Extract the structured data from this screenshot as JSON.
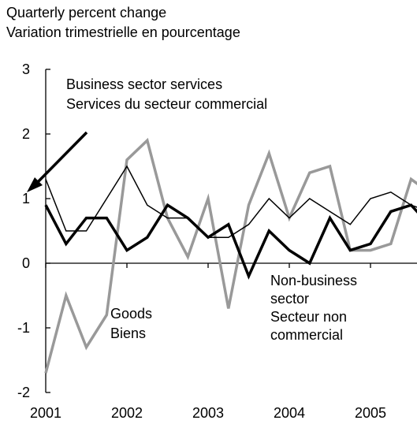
{
  "chart_data": {
    "type": "line",
    "title": "",
    "ylabel_lines": [
      "Quarterly percent change",
      "Variation trimestrielle en pourcentage"
    ],
    "xlabel": "",
    "ylim": [
      -2,
      3
    ],
    "yticks": [
      "3",
      "2",
      "1",
      "0",
      "-1",
      "-2"
    ],
    "ytick_values": [
      3,
      2,
      1,
      0,
      -1,
      -2
    ],
    "xlim": [
      2001,
      2005.72
    ],
    "xticks": [
      "2001",
      "2002",
      "2003",
      "2004",
      "2005"
    ],
    "xtick_values": [
      2001,
      2002,
      2003,
      2004,
      2005
    ],
    "grid": false,
    "series": [
      {
        "key": "goods",
        "color": "#999999",
        "width": 3.5,
        "x": [
          2001.0,
          2001.25,
          2001.5,
          2001.75,
          2002.0,
          2002.25,
          2002.5,
          2002.75,
          2003.0,
          2003.25,
          2003.5,
          2003.75,
          2004.0,
          2004.25,
          2004.5,
          2004.75,
          2005.0,
          2005.25,
          2005.5,
          2005.72
        ],
        "values": [
          -1.7,
          -0.5,
          -1.3,
          -0.8,
          1.6,
          1.9,
          0.7,
          0.1,
          1.0,
          -0.7,
          0.9,
          1.7,
          0.7,
          1.4,
          1.5,
          0.2,
          0.2,
          0.3,
          1.3,
          1.1
        ]
      },
      {
        "key": "business",
        "color": "#000000",
        "width": 1.5,
        "x": [
          2001.0,
          2001.25,
          2001.5,
          2001.75,
          2002.0,
          2002.25,
          2002.5,
          2002.75,
          2003.0,
          2003.25,
          2003.5,
          2003.75,
          2004.0,
          2004.25,
          2004.5,
          2004.75,
          2005.0,
          2005.25,
          2005.5,
          2005.72
        ],
        "values": [
          1.3,
          0.5,
          0.5,
          1.0,
          1.5,
          0.9,
          0.7,
          0.7,
          0.4,
          0.4,
          0.6,
          1.0,
          0.7,
          1.0,
          0.8,
          0.6,
          1.0,
          1.1,
          0.9,
          0.8
        ]
      },
      {
        "key": "nonbusiness",
        "color": "#000000",
        "width": 3.5,
        "x": [
          2001.0,
          2001.25,
          2001.5,
          2001.75,
          2002.0,
          2002.25,
          2002.5,
          2002.75,
          2003.0,
          2003.25,
          2003.5,
          2003.75,
          2004.0,
          2004.25,
          2004.5,
          2004.75,
          2005.0,
          2005.25,
          2005.5,
          2005.72
        ],
        "values": [
          0.9,
          0.3,
          0.7,
          0.7,
          0.2,
          0.4,
          0.9,
          0.7,
          0.4,
          0.6,
          -0.2,
          0.5,
          0.2,
          0.0,
          0.7,
          0.2,
          0.3,
          0.8,
          0.9,
          0.6
        ]
      }
    ],
    "annotations": {
      "business": [
        "Business  sector services",
        "Services du secteur  commercial"
      ],
      "goods": [
        "Goods",
        "Biens"
      ],
      "nonbusiness": [
        "Non-business",
        "sector",
        "Secteur non",
        "commercial"
      ]
    }
  }
}
